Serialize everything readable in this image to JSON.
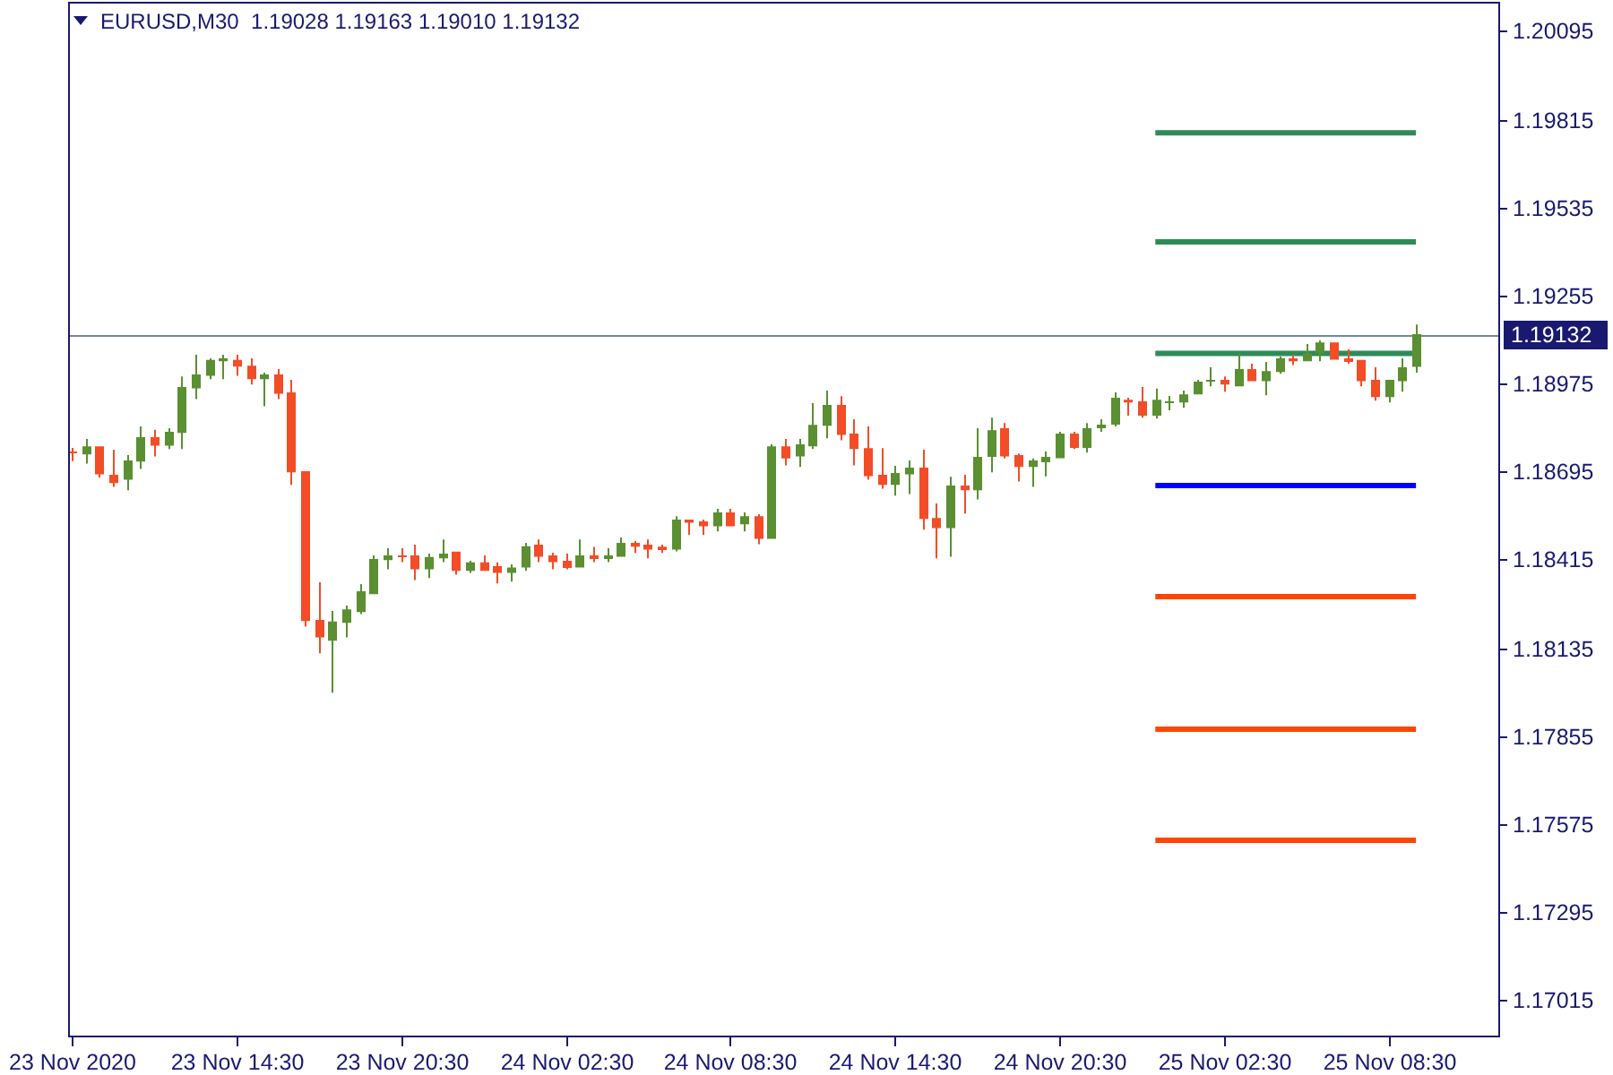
{
  "chart_data": {
    "type": "candlestick",
    "title": "EURUSD,M30  1.19028 1.19163 1.19010 1.19132",
    "x": [
      "2020-11-23T08:30",
      "2020-11-23T09:00",
      "2020-11-23T09:30",
      "2020-11-23T10:00",
      "2020-11-23T10:30",
      "2020-11-23T11:00",
      "2020-11-23T11:30",
      "2020-11-23T12:00",
      "2020-11-23T12:30",
      "2020-11-23T13:00",
      "2020-11-23T13:30",
      "2020-11-23T14:00",
      "2020-11-23T14:30",
      "2020-11-23T15:00",
      "2020-11-23T15:30",
      "2020-11-23T16:00",
      "2020-11-23T16:30",
      "2020-11-23T17:00",
      "2020-11-23T17:30",
      "2020-11-23T18:00",
      "2020-11-23T18:30",
      "2020-11-23T19:00",
      "2020-11-23T19:30",
      "2020-11-23T20:00",
      "2020-11-23T20:30",
      "2020-11-23T21:00",
      "2020-11-23T21:30",
      "2020-11-23T22:00",
      "2020-11-23T22:30",
      "2020-11-23T23:00",
      "2020-11-23T23:30",
      "2020-11-24T00:00",
      "2020-11-24T00:30",
      "2020-11-24T01:00",
      "2020-11-24T01:30",
      "2020-11-24T02:00",
      "2020-11-24T02:30",
      "2020-11-24T03:00",
      "2020-11-24T03:30",
      "2020-11-24T04:00",
      "2020-11-24T04:30",
      "2020-11-24T05:00",
      "2020-11-24T05:30",
      "2020-11-24T06:00",
      "2020-11-24T06:30",
      "2020-11-24T07:00",
      "2020-11-24T07:30",
      "2020-11-24T08:00",
      "2020-11-24T08:30",
      "2020-11-24T09:00",
      "2020-11-24T09:30",
      "2020-11-24T10:00",
      "2020-11-24T10:30",
      "2020-11-24T11:00",
      "2020-11-24T11:30",
      "2020-11-24T12:00",
      "2020-11-24T12:30",
      "2020-11-24T13:00",
      "2020-11-24T13:30",
      "2020-11-24T14:00",
      "2020-11-24T14:30",
      "2020-11-24T15:00",
      "2020-11-24T15:30",
      "2020-11-24T16:00",
      "2020-11-24T16:30",
      "2020-11-24T17:00",
      "2020-11-24T17:30",
      "2020-11-24T18:00",
      "2020-11-24T18:30",
      "2020-11-24T19:00",
      "2020-11-24T19:30",
      "2020-11-24T20:00",
      "2020-11-24T20:30",
      "2020-11-24T21:00",
      "2020-11-24T21:30",
      "2020-11-24T22:00",
      "2020-11-24T22:30",
      "2020-11-24T23:00",
      "2020-11-24T23:30",
      "2020-11-25T00:00",
      "2020-11-25T00:30",
      "2020-11-25T01:00",
      "2020-11-25T01:30",
      "2020-11-25T02:00",
      "2020-11-25T02:30",
      "2020-11-25T03:00",
      "2020-11-25T03:30",
      "2020-11-25T04:00",
      "2020-11-25T04:30",
      "2020-11-25T05:00",
      "2020-11-25T05:30",
      "2020-11-25T06:00",
      "2020-11-25T06:30",
      "2020-11-25T07:00",
      "2020-11-25T07:30",
      "2020-11-25T08:00",
      "2020-11-25T08:30",
      "2020-11-25T09:00",
      "2020-11-25T09:30"
    ],
    "ohlc": [
      [
        1.18759,
        1.18771,
        1.18729,
        1.18759
      ],
      [
        1.1875,
        1.18799,
        1.18721,
        1.18776
      ],
      [
        1.18776,
        1.18776,
        1.18676,
        1.18687
      ],
      [
        1.18685,
        1.18765,
        1.18647,
        1.18659
      ],
      [
        1.1867,
        1.18748,
        1.18636,
        1.18731
      ],
      [
        1.18727,
        1.18839,
        1.18704,
        1.18805
      ],
      [
        1.18805,
        1.18828,
        1.18744,
        1.18778
      ],
      [
        1.18778,
        1.18833,
        1.18767,
        1.18822
      ],
      [
        1.18818,
        1.18998,
        1.18767,
        1.18964
      ],
      [
        1.1896,
        1.19067,
        1.18926,
        1.19004
      ],
      [
        1.19,
        1.19055,
        1.18989,
        1.1905
      ],
      [
        1.19046,
        1.19067,
        1.18989,
        1.19055
      ],
      [
        1.1905,
        1.19067,
        1.19,
        1.19029
      ],
      [
        1.19032,
        1.19055,
        1.18972,
        1.18989
      ],
      [
        1.18989,
        1.1901,
        1.18903,
        1.19004
      ],
      [
        1.19004,
        1.19021,
        1.18926,
        1.18943
      ],
      [
        1.18947,
        1.18987,
        1.18653,
        1.18693
      ],
      [
        1.18697,
        1.18697,
        1.18203,
        1.18221
      ],
      [
        1.18224,
        1.18344,
        1.18118,
        1.18169
      ],
      [
        1.18158,
        1.18253,
        1.17993,
        1.18219
      ],
      [
        1.18215,
        1.1827,
        1.18169,
        1.18258
      ],
      [
        1.18249,
        1.18338,
        1.18243,
        1.18315
      ],
      [
        1.18306,
        1.18429,
        1.18306,
        1.18418
      ],
      [
        1.18414,
        1.18452,
        1.18385,
        1.18429
      ],
      [
        1.18429,
        1.18452,
        1.18408,
        1.18429
      ],
      [
        1.18429,
        1.18463,
        1.18351,
        1.18385
      ],
      [
        1.18385,
        1.18435,
        1.18357,
        1.18424
      ],
      [
        1.1842,
        1.1848,
        1.18408,
        1.18435
      ],
      [
        1.18441,
        1.18441,
        1.18368,
        1.1838
      ],
      [
        1.1838,
        1.18412,
        1.18374,
        1.18407
      ],
      [
        1.18407,
        1.18429,
        1.1838,
        1.1838
      ],
      [
        1.18395,
        1.18407,
        1.1834,
        1.18374
      ],
      [
        1.18374,
        1.18401,
        1.18346,
        1.18391
      ],
      [
        1.18391,
        1.18469,
        1.1838,
        1.18458
      ],
      [
        1.18463,
        1.1848,
        1.18408,
        1.18425
      ],
      [
        1.18429,
        1.18438,
        1.18385,
        1.18408
      ],
      [
        1.18412,
        1.18435,
        1.18385,
        1.18389
      ],
      [
        1.18391,
        1.1848,
        1.18391,
        1.18429
      ],
      [
        1.18429,
        1.18456,
        1.18408,
        1.18418
      ],
      [
        1.18418,
        1.18452,
        1.18408,
        1.18429
      ],
      [
        1.18425,
        1.18486,
        1.18425,
        1.18469
      ],
      [
        1.18469,
        1.18475,
        1.18437,
        1.18457
      ],
      [
        1.18463,
        1.1848,
        1.1842,
        1.18448
      ],
      [
        1.18457,
        1.18463,
        1.18437,
        1.18446
      ],
      [
        1.18448,
        1.18554,
        1.18442,
        1.18543
      ],
      [
        1.18543,
        1.18543,
        1.18494,
        1.18533
      ],
      [
        1.18537,
        1.18543,
        1.18494,
        1.18522
      ],
      [
        1.18522,
        1.18577,
        1.18505,
        1.18566
      ],
      [
        1.18566,
        1.18577,
        1.18522,
        1.18522
      ],
      [
        1.18528,
        1.18566,
        1.18505,
        1.18554
      ],
      [
        1.18554,
        1.1856,
        1.18465,
        1.18482
      ],
      [
        1.18482,
        1.18782,
        1.18482,
        1.18776
      ],
      [
        1.18776,
        1.18799,
        1.18715,
        1.18737
      ],
      [
        1.18744,
        1.18799,
        1.1871,
        1.18782
      ],
      [
        1.18776,
        1.18913,
        1.18767,
        1.18844
      ],
      [
        1.18841,
        1.18953,
        1.18801,
        1.18907
      ],
      [
        1.18907,
        1.18935,
        1.18795,
        1.18812
      ],
      [
        1.18816,
        1.18862,
        1.18715,
        1.18767
      ],
      [
        1.1877,
        1.18839,
        1.1867,
        1.18681
      ],
      [
        1.18685,
        1.1877,
        1.18641,
        1.18653
      ],
      [
        1.18653,
        1.18714,
        1.18619,
        1.18691
      ],
      [
        1.18687,
        1.18731,
        1.18624,
        1.18708
      ],
      [
        1.18708,
        1.18765,
        1.18511,
        1.18545
      ],
      [
        1.18548,
        1.18594,
        1.1842,
        1.18516
      ],
      [
        1.18516,
        1.18679,
        1.18425,
        1.18651
      ],
      [
        1.18651,
        1.18685,
        1.18562,
        1.18636
      ],
      [
        1.18636,
        1.18833,
        1.18607,
        1.18742
      ],
      [
        1.18742,
        1.18867,
        1.18693,
        1.18827
      ],
      [
        1.18833,
        1.1885,
        1.18737,
        1.18744
      ],
      [
        1.18748,
        1.18753,
        1.18664,
        1.1871
      ],
      [
        1.1871,
        1.18737,
        1.18647,
        1.18731
      ],
      [
        1.18725,
        1.18759,
        1.1868,
        1.18742
      ],
      [
        1.18738,
        1.18822,
        1.18738,
        1.18816
      ],
      [
        1.18816,
        1.18822,
        1.18767,
        1.18771
      ],
      [
        1.18771,
        1.1885,
        1.18756,
        1.18833
      ],
      [
        1.18833,
        1.18862,
        1.18822,
        1.18845
      ],
      [
        1.18845,
        1.18947,
        1.18839,
        1.1893
      ],
      [
        1.18924,
        1.1893,
        1.18873,
        1.18915
      ],
      [
        1.18919,
        1.18964,
        1.18867,
        1.18873
      ],
      [
        1.18873,
        1.18959,
        1.18864,
        1.18924
      ],
      [
        1.18919,
        1.18936,
        1.1889,
        1.18919
      ],
      [
        1.18915,
        1.18953,
        1.18898,
        1.18941
      ],
      [
        1.18941,
        1.18987,
        1.18941,
        1.18981
      ],
      [
        1.18987,
        1.19027,
        1.18966,
        1.18987
      ],
      [
        1.18987,
        1.18998,
        1.18949,
        1.18972
      ],
      [
        1.18966,
        1.19072,
        1.18966,
        1.19021
      ],
      [
        1.19021,
        1.19038,
        1.18983,
        1.18983
      ],
      [
        1.18983,
        1.19044,
        1.18938,
        1.19015
      ],
      [
        1.19012,
        1.19061,
        1.19006,
        1.19055
      ],
      [
        1.19055,
        1.19067,
        1.19034,
        1.19046
      ],
      [
        1.19046,
        1.19101,
        1.19046,
        1.19072
      ],
      [
        1.19072,
        1.19112,
        1.19046,
        1.19106
      ],
      [
        1.19106,
        1.19106,
        1.19051,
        1.19051
      ],
      [
        1.19055,
        1.19084,
        1.19038,
        1.19044
      ],
      [
        1.1905,
        1.1905,
        1.18966,
        1.18983
      ],
      [
        1.18987,
        1.19027,
        1.18921,
        1.18932
      ],
      [
        1.18932,
        1.18987,
        1.18915,
        1.18987
      ],
      [
        1.18983,
        1.19055,
        1.18949,
        1.19027
      ],
      [
        1.19028,
        1.19163,
        1.1901,
        1.19132
      ]
    ],
    "colors": [
      "#f24d26",
      "#5a8f32",
      "#f24d26",
      "#f24d26",
      "#5a8f32",
      "#5a8f32",
      "#f24d26",
      "#5a8f32",
      "#5a8f32",
      "#5a8f32",
      "#5a8f32",
      "#5a8f32",
      "#f24d26",
      "#f24d26",
      "#5a8f32",
      "#f24d26",
      "#f24d26",
      "#f24d26",
      "#f24d26",
      "#5a8f32",
      "#5a8f32",
      "#5a8f32",
      "#5a8f32",
      "#5a8f32",
      "#f24d26",
      "#f24d26",
      "#5a8f32",
      "#5a8f32",
      "#f24d26",
      "#5a8f32",
      "#f24d26",
      "#f24d26",
      "#5a8f32",
      "#5a8f32",
      "#f24d26",
      "#f24d26",
      "#f24d26",
      "#5a8f32",
      "#f24d26",
      "#5a8f32",
      "#5a8f32",
      "#f24d26",
      "#f24d26",
      "#f24d26",
      "#5a8f32",
      "#f24d26",
      "#f24d26",
      "#5a8f32",
      "#f24d26",
      "#5a8f32",
      "#f24d26",
      "#5a8f32",
      "#f24d26",
      "#5a8f32",
      "#5a8f32",
      "#5a8f32",
      "#f24d26",
      "#f24d26",
      "#f24d26",
      "#f24d26",
      "#5a8f32",
      "#5a8f32",
      "#f24d26",
      "#f24d26",
      "#5a8f32",
      "#f24d26",
      "#5a8f32",
      "#5a8f32",
      "#f24d26",
      "#f24d26",
      "#5a8f32",
      "#5a8f32",
      "#5a8f32",
      "#f24d26",
      "#5a8f32",
      "#5a8f32",
      "#5a8f32",
      "#f24d26",
      "#f24d26",
      "#5a8f32",
      "#5a8f32",
      "#5a8f32",
      "#5a8f32",
      "#5a8f32",
      "#f24d26",
      "#5a8f32",
      "#f24d26",
      "#5a8f32",
      "#5a8f32",
      "#f24d26",
      "#5a8f32",
      "#5a8f32",
      "#f24d26",
      "#f24d26",
      "#f24d26",
      "#f24d26",
      "#5a8f32",
      "#5a8f32",
      "#5a8f32"
    ],
    "series": [
      {
        "type": "line",
        "x": [
          "2020-11-25T00:00",
          "2020-11-25T09:30"
        ],
        "values": [
          1.19772,
          1.19772
        ],
        "color": "#2e8b57"
      },
      {
        "type": "line",
        "x": [
          "2020-11-25T00:00",
          "2020-11-25T09:30"
        ],
        "values": [
          1.19425,
          1.19425
        ],
        "color": "#2e8b57"
      },
      {
        "type": "line",
        "x": [
          "2020-11-25T00:00",
          "2020-11-25T09:30"
        ],
        "values": [
          1.19071,
          1.19071
        ],
        "color": "#2e8b57"
      },
      {
        "type": "line",
        "x": [
          "2020-11-25T00:00",
          "2020-11-25T09:30"
        ],
        "values": [
          1.18651,
          1.18651
        ],
        "color": "#0000ff"
      },
      {
        "type": "line",
        "x": [
          "2020-11-25T00:00",
          "2020-11-25T09:30"
        ],
        "values": [
          1.18298,
          1.18298
        ],
        "color": "#ff4500"
      },
      {
        "type": "line",
        "x": [
          "2020-11-25T00:00",
          "2020-11-25T09:30"
        ],
        "values": [
          1.17877,
          1.17877
        ],
        "color": "#ff4500"
      },
      {
        "type": "line",
        "x": [
          "2020-11-25T00:00",
          "2020-11-25T09:30"
        ],
        "values": [
          1.17524,
          1.17524
        ],
        "color": "#ff4500"
      }
    ],
    "ref_lines": [
      {
        "axis": "y",
        "value": 1.19132,
        "label": "1.19132",
        "color": "#778899"
      }
    ],
    "xlim": [
      "2020-11-23T08:22",
      "2020-11-25T12:34"
    ],
    "xticks": [
      {
        "value": "2020-11-23T08:30",
        "label": "23 Nov 2020"
      },
      {
        "value": "2020-11-23T14:30",
        "label": "23 Nov 14:30"
      },
      {
        "value": "2020-11-23T20:30",
        "label": "23 Nov 20:30"
      },
      {
        "value": "2020-11-24T02:30",
        "label": "24 Nov 02:30"
      },
      {
        "value": "2020-11-24T08:30",
        "label": "24 Nov 08:30"
      },
      {
        "value": "2020-11-24T14:30",
        "label": "24 Nov 14:30"
      },
      {
        "value": "2020-11-24T20:30",
        "label": "24 Nov 20:30"
      },
      {
        "value": "2020-11-25T02:30",
        "label": "25 Nov 02:30"
      },
      {
        "value": "2020-11-25T08:30",
        "label": "25 Nov 08:30"
      }
    ],
    "ylim": [
      1.16898,
      1.20188
    ],
    "yticks": [
      1.20095,
      1.19815,
      1.19535,
      1.19255,
      1.18975,
      1.18695,
      1.18415,
      1.18135,
      1.17855,
      1.17575,
      1.17295,
      1.17015
    ]
  }
}
